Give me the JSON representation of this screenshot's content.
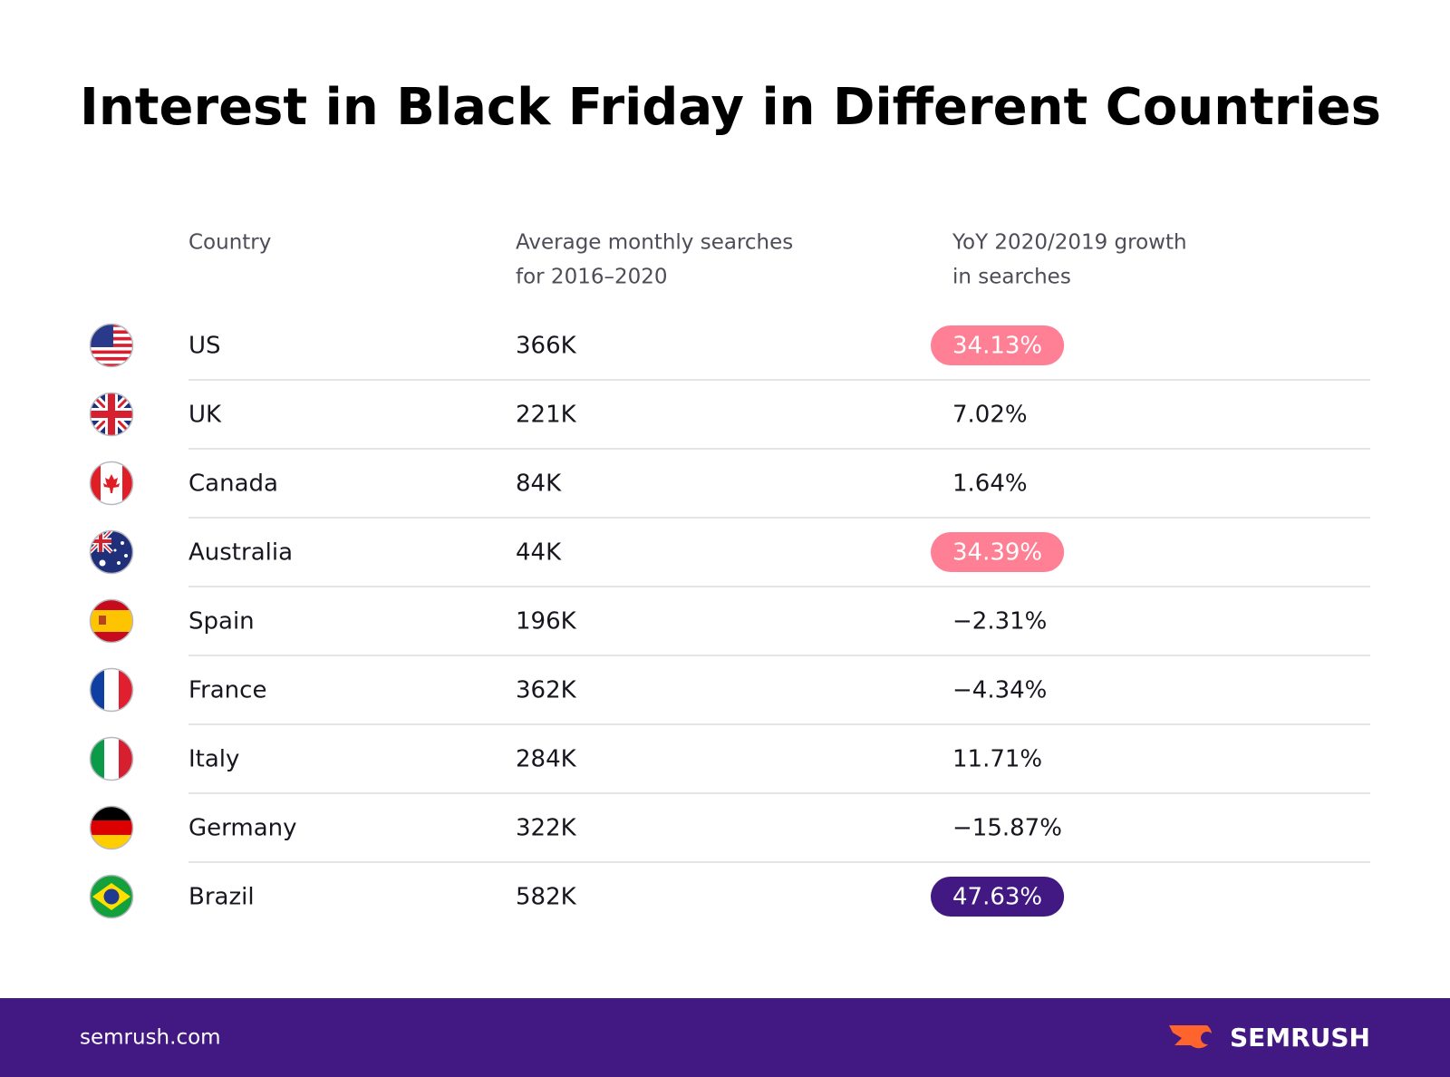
{
  "title": "Interest in Black Friday in Different Countries",
  "table": {
    "header": [
      [
        "Country"
      ],
      [
        "Average monthly searches",
        "for 2016–2020"
      ],
      [
        "YoY 2020/2019 growth",
        "in searches"
      ]
    ],
    "rows": [
      [
        "US",
        "366K",
        "34.13%"
      ],
      [
        "UK",
        "221K",
        "7.02%"
      ],
      [
        "Canada",
        "84K",
        "1.64%"
      ],
      [
        "Australia",
        "44K",
        "34.39%"
      ],
      [
        "Spain",
        "196K",
        "−2.31%"
      ],
      [
        "France",
        "362K",
        "−4.34%"
      ],
      [
        "Italy",
        "284K",
        "11.71%"
      ],
      [
        "Germany",
        "322K",
        "−15.87%"
      ],
      [
        "Brazil",
        "582K",
        "47.63%"
      ]
    ],
    "highlight": [
      "#ff8095",
      null,
      null,
      "#ff8095",
      null,
      null,
      null,
      null,
      "#421983"
    ]
  },
  "footer": {
    "site": "semrush.com",
    "logo": "SEMRUSH"
  }
}
